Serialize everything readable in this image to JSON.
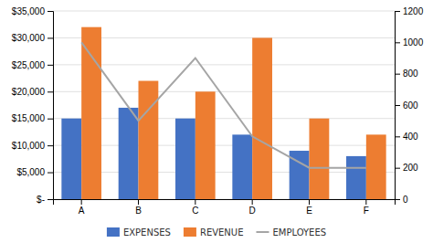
{
  "chart_data": {
    "type": "bar",
    "categories": [
      "A",
      "B",
      "C",
      "D",
      "E",
      "F"
    ],
    "series": [
      {
        "name": "EXPENSES",
        "type": "bar",
        "color": "#4472C4",
        "values": [
          15000,
          17000,
          15000,
          12000,
          9000,
          8000
        ]
      },
      {
        "name": "REVENUE",
        "type": "bar",
        "color": "#ED7D31",
        "values": [
          32000,
          22000,
          20000,
          30000,
          15000,
          12000
        ]
      },
      {
        "name": "EMPLOYEES",
        "type": "line",
        "axis": "y2",
        "color": "#A5A5A5",
        "values": [
          1000,
          500,
          900,
          400,
          200,
          200
        ]
      }
    ],
    "ylim": [
      0,
      35000
    ],
    "yticks": [
      {
        "value": 0,
        "label": "$-"
      },
      {
        "value": 5000,
        "label": "$5,000"
      },
      {
        "value": 10000,
        "label": "$10,000"
      },
      {
        "value": 15000,
        "label": "$15,000"
      },
      {
        "value": 20000,
        "label": "$20,000"
      },
      {
        "value": 25000,
        "label": "$25,000"
      },
      {
        "value": 30000,
        "label": "$30,000"
      },
      {
        "value": 35000,
        "label": "$35,000"
      }
    ],
    "y2lim": [
      0,
      1200
    ],
    "y2ticks": [
      0,
      200,
      400,
      600,
      800,
      1000,
      1200
    ],
    "grid": true,
    "legend": "bottom"
  }
}
